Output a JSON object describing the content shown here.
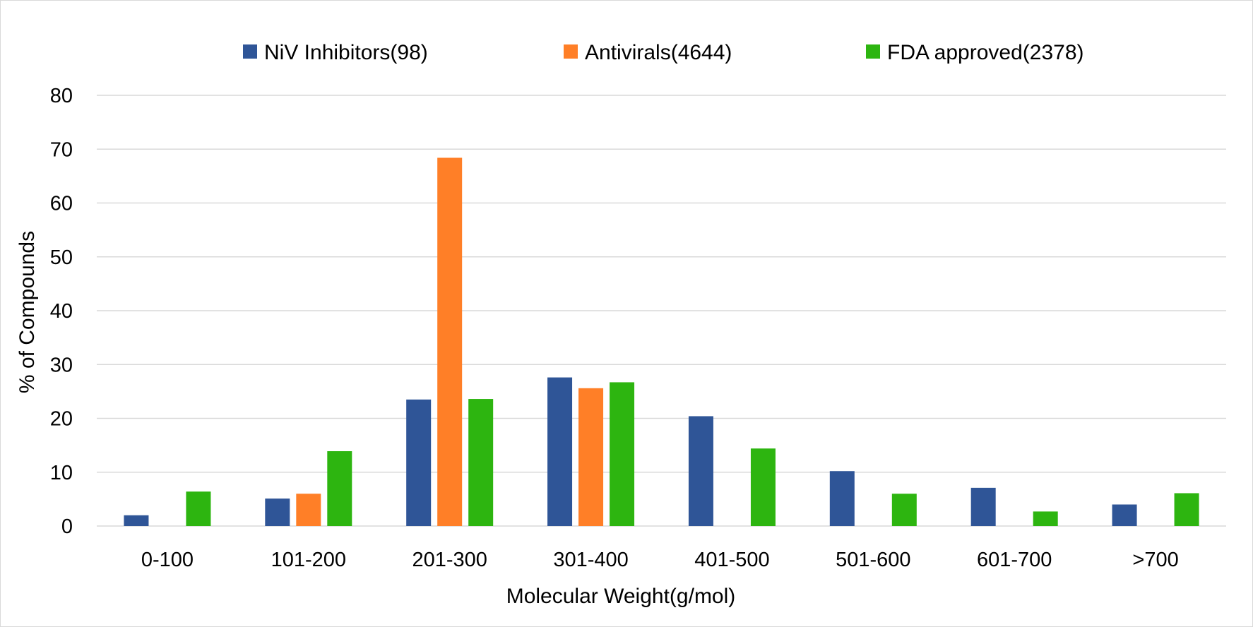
{
  "chart_data": {
    "type": "bar",
    "title": "",
    "xlabel": "Molecular Weight(g/mol)",
    "ylabel": "% of Compounds",
    "ylim": [
      0,
      80
    ],
    "yticks": [
      "0",
      "10",
      "20",
      "30",
      "40",
      "50",
      "60",
      "70",
      "80"
    ],
    "grid": true,
    "legend_position": "top",
    "categories": [
      "0-100",
      "101-200",
      "201-300",
      "301-400",
      "401-500",
      "501-600",
      "601-700",
      ">700"
    ],
    "series": [
      {
        "name": "NiV Inhibitors(98)",
        "color": "#2f5597",
        "values": [
          2.0,
          5.1,
          23.5,
          27.6,
          20.4,
          10.2,
          7.1,
          4.0
        ]
      },
      {
        "name": "Antivirals(4644)",
        "color": "#ff7f27",
        "values": [
          0,
          6.0,
          68.4,
          25.6,
          0,
          0,
          0,
          0
        ]
      },
      {
        "name": "FDA approved(2378)",
        "color": "#2db510",
        "values": [
          6.4,
          13.9,
          23.6,
          26.7,
          14.4,
          6.0,
          2.7,
          6.1
        ]
      }
    ]
  }
}
